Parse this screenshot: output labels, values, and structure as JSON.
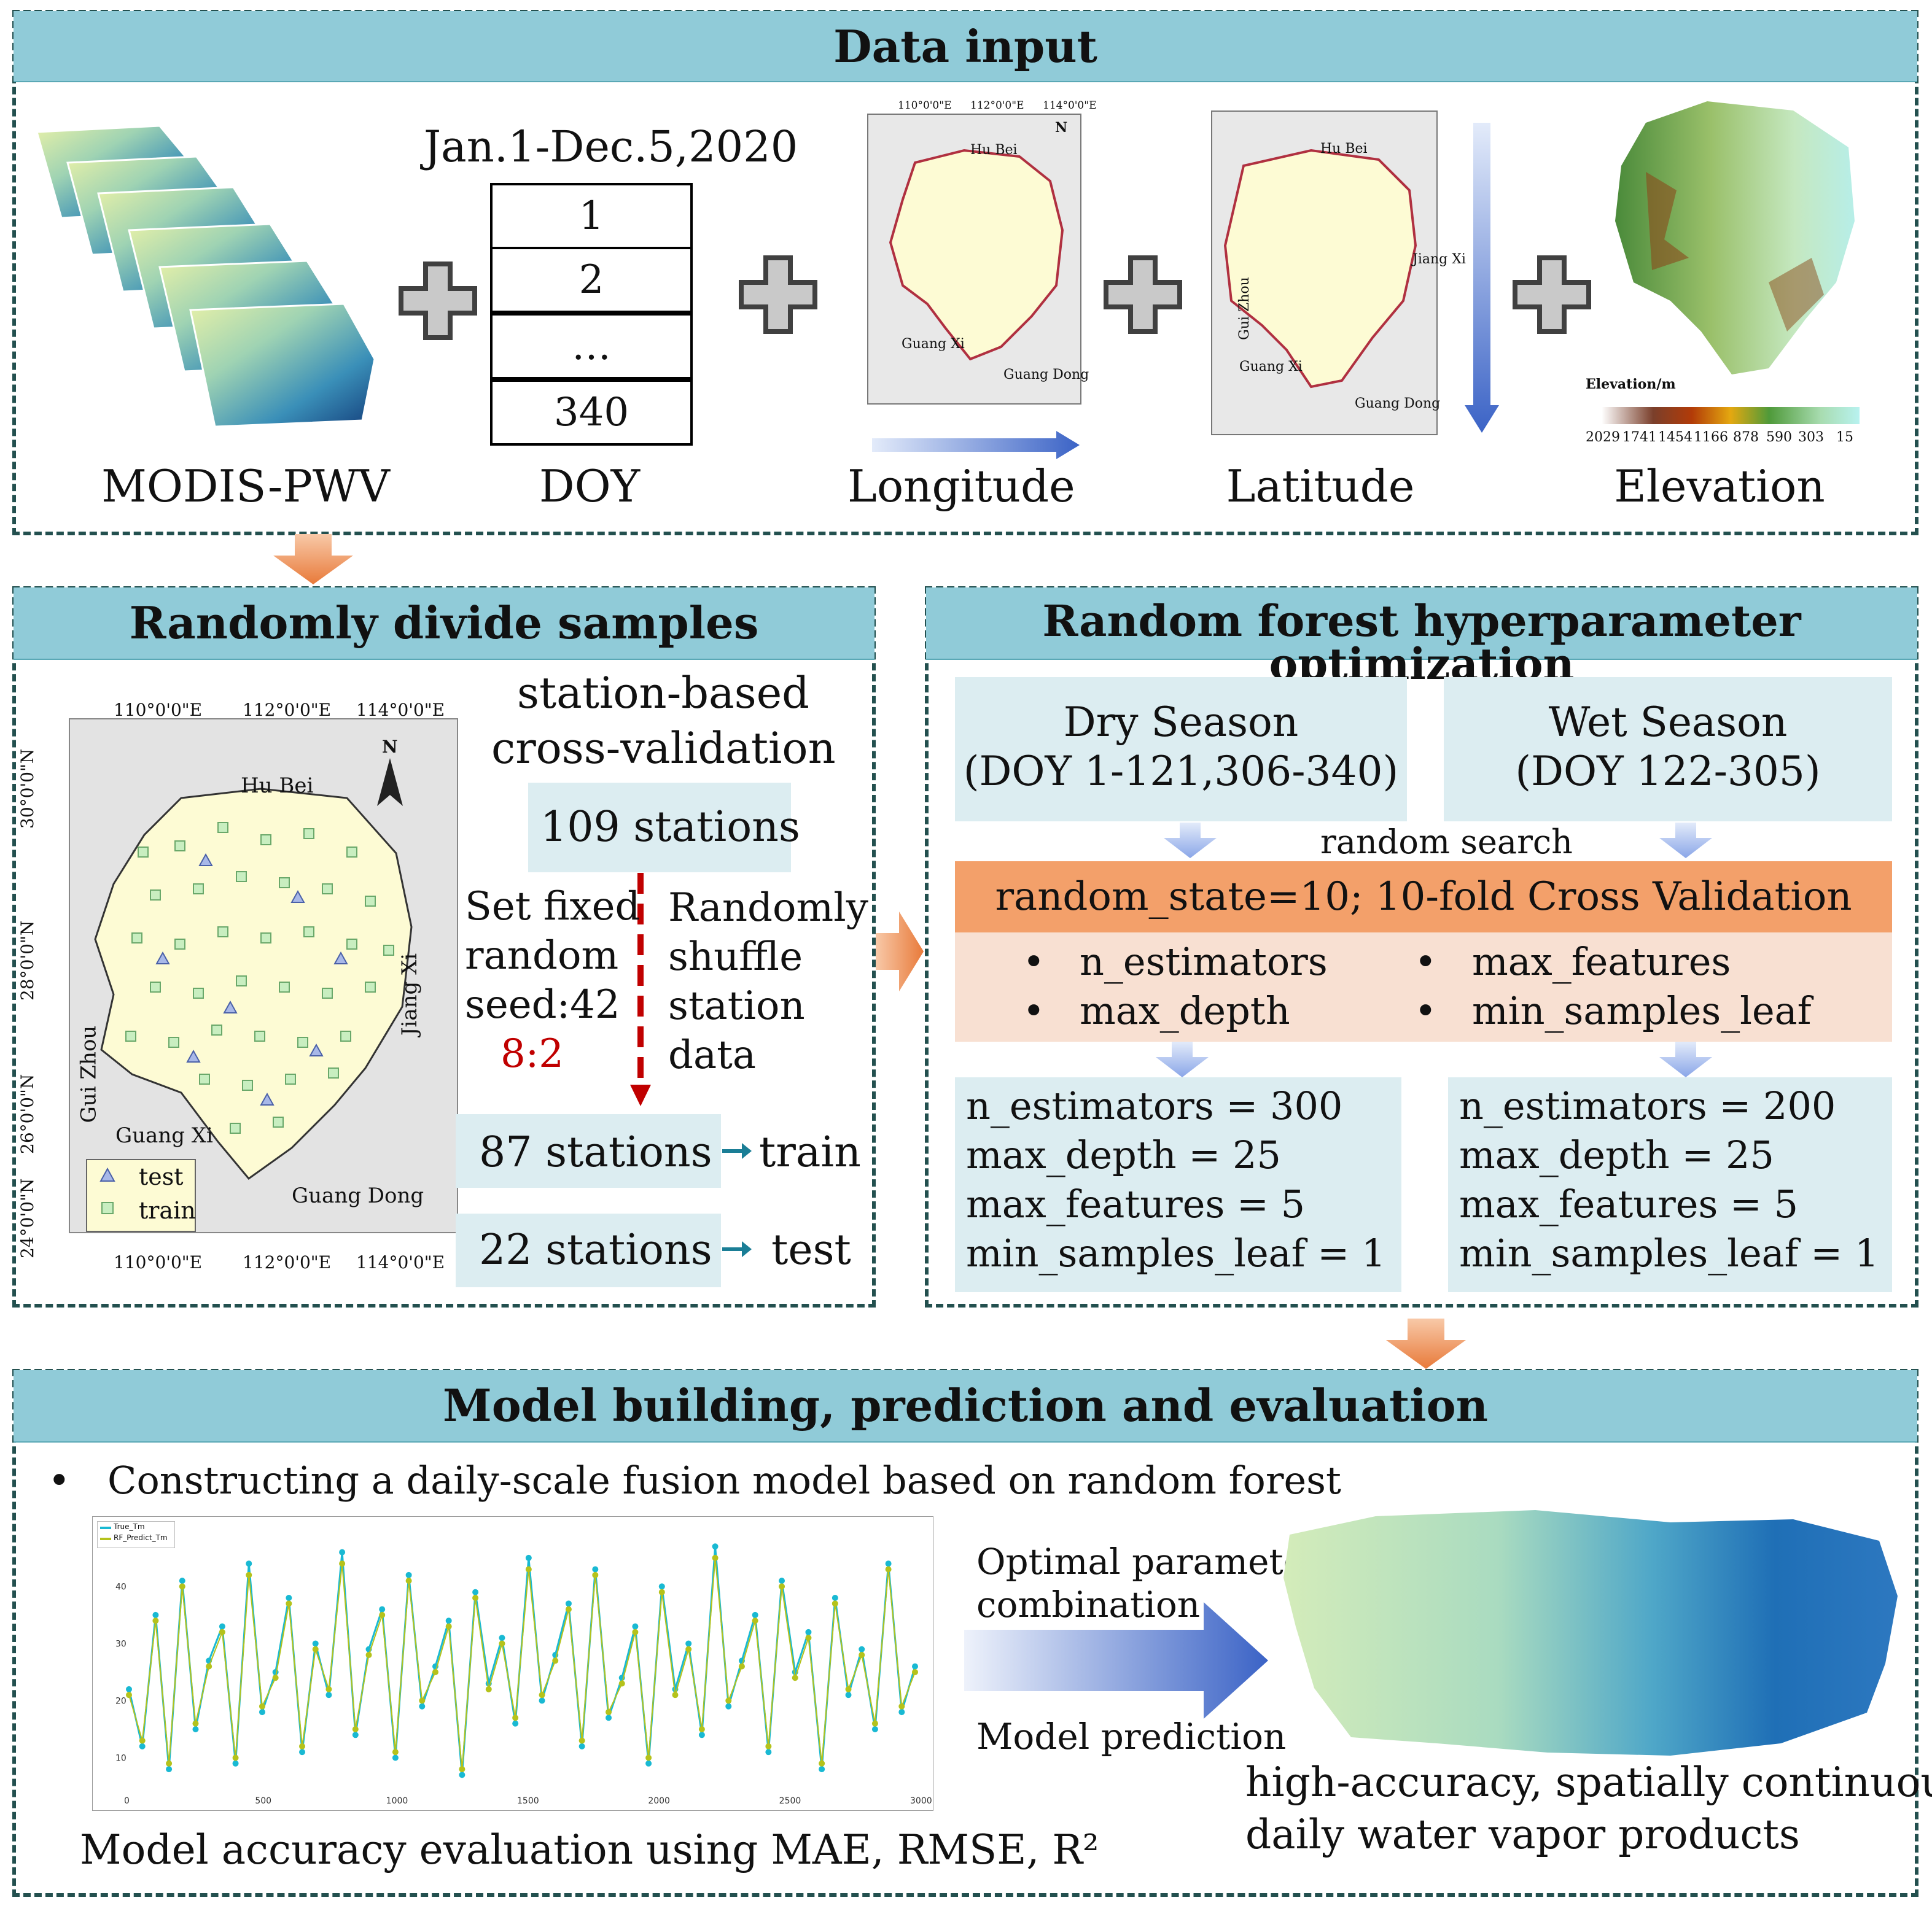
{
  "colors": {
    "header": "#90cbd8",
    "border": "#23504f",
    "orange": "#f3a06a",
    "lightbox": "#dcedf1",
    "peach": "#f8e0d2"
  },
  "data_input": {
    "title": "Data input",
    "date_range": "Jan.1-Dec.5,2020",
    "doy_values": [
      "1",
      "2",
      "…",
      "340"
    ],
    "labels": {
      "modis": "MODIS-PWV",
      "doy": "DOY",
      "lon": "Longitude",
      "lat": "Latitude",
      "elev": "Elevation"
    },
    "map_ticks": {
      "lon": [
        "110°0'0\"E",
        "112°0'0\"E",
        "114°0'0\"E"
      ],
      "lat": [
        "30°0'0\"N",
        "28°0'0\"N",
        "26°0'0\"N",
        "24°0'0\"N"
      ]
    },
    "provinces": {
      "hubei": "Hu Bei",
      "jiangxi": "Jiang Xi",
      "guizhou": "Gui Zhou",
      "guangxi": "Guang Xi",
      "guangdong": "Guang Dong",
      "north": "N"
    },
    "elevation_legend": {
      "title": "Elevation/m",
      "ticks": [
        "2029",
        "1741",
        "1454",
        "1166",
        "878",
        "590",
        "303",
        "15"
      ]
    }
  },
  "divide": {
    "title": "Randomly divide samples",
    "method_line1": "station-based",
    "method_line2": "cross-validation",
    "total": "109 stations",
    "seed_lines": [
      "Set fixed",
      "random",
      "seed:42"
    ],
    "ratio": "8:2",
    "shuffle_lines": [
      "Randomly",
      "shuffle",
      "station",
      "data"
    ],
    "train_count": "87 stations",
    "train_label": "train",
    "test_count": "22 stations",
    "test_label": "test",
    "legend": {
      "test": "test",
      "train": "train"
    }
  },
  "rf": {
    "title": "Random forest hyperparameter optimization",
    "dry": {
      "name": "Dry Season",
      "range": "(DOY 1-121,306-340)"
    },
    "wet": {
      "name": "Wet Season",
      "range": "(DOY 122-305)"
    },
    "search": "random search",
    "cv": "random_state=10; 10-fold Cross Validation",
    "params": [
      "n_estimators",
      "max_depth",
      "max_features",
      "min_samples_leaf"
    ],
    "dry_result": [
      "n_estimators = 300",
      "max_depth = 25",
      "max_features = 5",
      "min_samples_leaf = 1"
    ],
    "wet_result": [
      "n_estimators = 200",
      "max_depth = 25",
      "max_features = 5",
      "min_samples_leaf = 1"
    ]
  },
  "model": {
    "title": "Model building, prediction and evaluation",
    "bullet": "Constructing a daily-scale fusion model based on random forest",
    "arrow_top": [
      "Optimal parameter",
      "combination"
    ],
    "arrow_bottom": "Model prediction",
    "eval": "Model accuracy evaluation using MAE, RMSE, R²",
    "product": [
      "high-accuracy, spatially continuous",
      "daily water vapor products"
    ],
    "plot_legend": [
      "True_Tm",
      "RF_Predict_Tm"
    ],
    "plot_yticks": [
      "10",
      "20",
      "30",
      "40"
    ],
    "plot_xticks": [
      "0",
      "500",
      "1000",
      "1500",
      "2000",
      "2500",
      "3000"
    ]
  },
  "chart_data": {
    "type": "line",
    "title": "",
    "xlabel": "",
    "ylabel": "",
    "xlim": [
      0,
      3000
    ],
    "ylim": [
      5,
      48
    ],
    "series": [
      {
        "name": "True_Tm",
        "color": "#19b9d3",
        "values": [
          22,
          12,
          35,
          8,
          41,
          15,
          27,
          33,
          9,
          44,
          18,
          25,
          38,
          11,
          30,
          21,
          46,
          14,
          29,
          36,
          10,
          42,
          19,
          26,
          34,
          7,
          39,
          23,
          31,
          16,
          45,
          20,
          28,
          37,
          12,
          43,
          17,
          24,
          33,
          9,
          40,
          22,
          30,
          14,
          47,
          19,
          27,
          35,
          11,
          41,
          25,
          32,
          8,
          38,
          21,
          29,
          15,
          44,
          18,
          26
        ]
      },
      {
        "name": "RF_Predict_Tm",
        "color": "#b5c21b",
        "values": [
          21,
          13,
          34,
          9,
          40,
          16,
          26,
          32,
          10,
          42,
          19,
          24,
          37,
          12,
          29,
          22,
          44,
          15,
          28,
          35,
          11,
          41,
          20,
          25,
          33,
          8,
          38,
          22,
          30,
          17,
          43,
          21,
          27,
          36,
          13,
          42,
          18,
          23,
          32,
          10,
          39,
          21,
          29,
          15,
          45,
          20,
          26,
          34,
          12,
          40,
          24,
          31,
          9,
          37,
          22,
          28,
          16,
          43,
          19,
          25
        ]
      }
    ]
  }
}
